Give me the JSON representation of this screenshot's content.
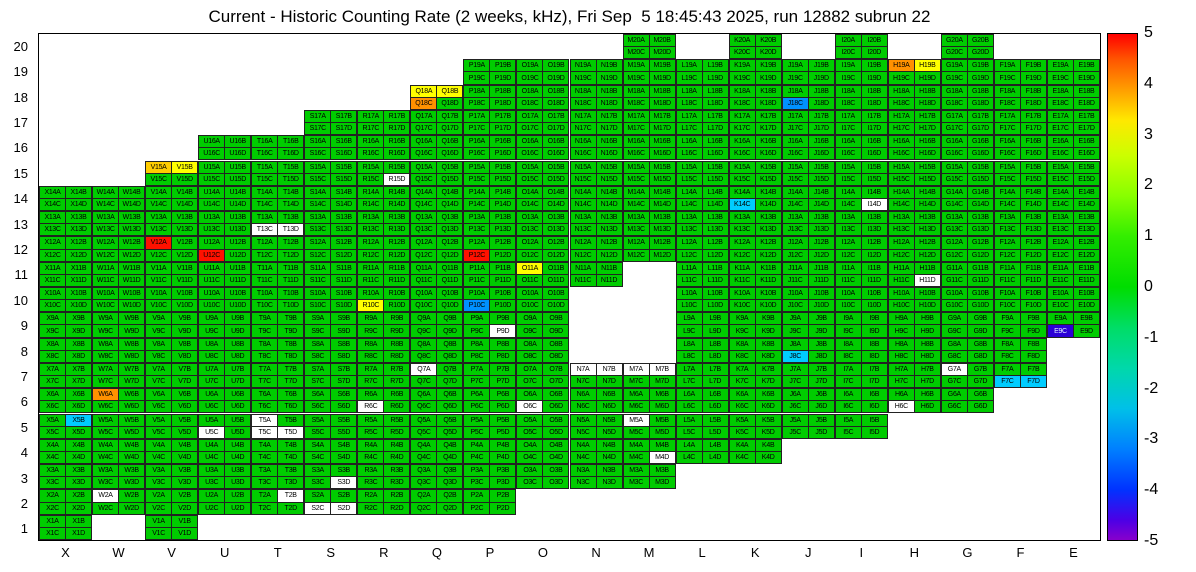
{
  "title": "Current - Historic Counting Rate (2 weeks, kHz), Fri Sep  5 18:45:43 2025, run 12882 subrun 22",
  "chart_data": {
    "type": "heatmap",
    "title": "Current - Historic Counting Rate (2 weeks, kHz), Fri Sep  5 18:45:43 2025, run 12882 subrun 22",
    "legend_position": "right",
    "columns": [
      "X",
      "W",
      "V",
      "U",
      "T",
      "S",
      "R",
      "Q",
      "P",
      "O",
      "N",
      "M",
      "L",
      "K",
      "J",
      "I",
      "H",
      "G",
      "F",
      "E"
    ],
    "rows": [
      20,
      19,
      18,
      17,
      16,
      15,
      14,
      13,
      12,
      11,
      10,
      9,
      8,
      7,
      6,
      5,
      4,
      3,
      2,
      1
    ],
    "quadrant_suffixes": [
      "A",
      "B",
      "C",
      "D"
    ],
    "cells": {
      "20": [
        "M",
        "K",
        "I",
        "G"
      ],
      "19": [
        "P",
        "O",
        "N",
        "M",
        "L",
        "K",
        "J",
        "I",
        "H",
        "G",
        "F",
        "E"
      ],
      "18": [
        "Q",
        "P",
        "O",
        "N",
        "M",
        "L",
        "K",
        "J",
        "I",
        "H",
        "G",
        "F",
        "E"
      ],
      "17": [
        "S",
        "R",
        "Q",
        "P",
        "O",
        "N",
        "M",
        "L",
        "K",
        "J",
        "I",
        "H",
        "G",
        "F",
        "E"
      ],
      "16": [
        "U",
        "T",
        "S",
        "R",
        "Q",
        "P",
        "O",
        "N",
        "M",
        "L",
        "K",
        "J",
        "I",
        "H",
        "G",
        "F",
        "E"
      ],
      "15": [
        "V",
        "U",
        "T",
        "S",
        "R",
        "Q",
        "P",
        "O",
        "N",
        "M",
        "L",
        "K",
        "J",
        "I",
        "H",
        "G",
        "F",
        "E"
      ],
      "14": [
        "X",
        "W",
        "V",
        "U",
        "T",
        "S",
        "R",
        "Q",
        "P",
        "O",
        "N",
        "M",
        "L",
        "K",
        "J",
        "I",
        "H",
        "G",
        "F",
        "E"
      ],
      "13": [
        "X",
        "W",
        "V",
        "U",
        "T",
        "S",
        "R",
        "Q",
        "P",
        "O",
        "N",
        "M",
        "L",
        "K",
        "J",
        "I",
        "H",
        "G",
        "F",
        "E"
      ],
      "12": [
        "X",
        "W",
        "V",
        "U",
        "T",
        "S",
        "R",
        "Q",
        "P",
        "O",
        "N",
        "M",
        "L",
        "K",
        "J",
        "I",
        "H",
        "G",
        "F",
        "E"
      ],
      "11": [
        "X",
        "W",
        "V",
        "U",
        "T",
        "S",
        "R",
        "Q",
        "P",
        "O",
        "N",
        "L",
        "K",
        "J",
        "I",
        "H",
        "G",
        "F",
        "E"
      ],
      "10": [
        "X",
        "W",
        "V",
        "U",
        "T",
        "S",
        "R",
        "Q",
        "P",
        "O",
        "L",
        "K",
        "J",
        "I",
        "H",
        "G",
        "F",
        "E"
      ],
      "9": [
        "X",
        "W",
        "V",
        "U",
        "T",
        "S",
        "R",
        "Q",
        "P",
        "O",
        "L",
        "K",
        "J",
        "I",
        "H",
        "G",
        "F",
        "E"
      ],
      "8": [
        "X",
        "W",
        "V",
        "U",
        "T",
        "S",
        "R",
        "Q",
        "P",
        "O",
        "L",
        "K",
        "J",
        "I",
        "H",
        "G",
        "F"
      ],
      "7": [
        "X",
        "W",
        "V",
        "U",
        "T",
        "S",
        "R",
        "Q",
        "P",
        "O",
        "N",
        "M",
        "L",
        "K",
        "J",
        "I",
        "H",
        "G",
        "F"
      ],
      "6": [
        "X",
        "W",
        "V",
        "U",
        "T",
        "S",
        "R",
        "Q",
        "P",
        "O",
        "N",
        "M",
        "L",
        "K",
        "J",
        "I",
        "H",
        "G"
      ],
      "5": [
        "X",
        "W",
        "V",
        "U",
        "T",
        "S",
        "R",
        "Q",
        "P",
        "O",
        "N",
        "M",
        "L",
        "K",
        "J",
        "I"
      ],
      "4": [
        "X",
        "W",
        "V",
        "U",
        "T",
        "S",
        "R",
        "Q",
        "P",
        "O",
        "N",
        "M",
        "L",
        "K"
      ],
      "3": [
        "X",
        "W",
        "V",
        "U",
        "T",
        "S",
        "R",
        "Q",
        "P",
        "O",
        "N",
        "M"
      ],
      "2": [
        "X",
        "W",
        "V",
        "U",
        "T",
        "S",
        "R",
        "Q",
        "P"
      ],
      "1": [
        "X",
        "V"
      ]
    },
    "palette": {
      "g": "#00cc00",
      "y": "#ffff00",
      "Y": "#ffcc00",
      "o": "#ff9100",
      "r": "#ff1100",
      "c": "#00ccff",
      "b": "#0091ff",
      "B": "#2b00d6",
      "w": "#ffffff"
    },
    "default_code": "g",
    "overrides": {
      "H19A": "o",
      "H19B": "y",
      "Q18A": "y",
      "Q18B": "y",
      "Q18C": "o",
      "J18C": "b",
      "V15A": "Y",
      "V15B": "y",
      "R15D": "w",
      "K14C": "c",
      "I14D": "w",
      "T13C": "w",
      "T13D": "w",
      "V12A": "r",
      "U12C": "r",
      "P12C": "r",
      "O11A": "y",
      "H11D": "w",
      "R10C": "y",
      "P10C": "b",
      "P9D": "w",
      "E9C": "B",
      "J8C": "c",
      "Q7A": "w",
      "N7A": "w",
      "N7B": "w",
      "M7A": "w",
      "M7B": "w",
      "G7A": "w",
      "F7C": "c",
      "F7D": "c",
      "W6A": "o",
      "R6C": "w",
      "O6C": "w",
      "H6C": "w",
      "X5B": "c",
      "U5C": "w",
      "T5A": "w",
      "T5C": "w",
      "T5D": "w",
      "M5A": "w",
      "M4D": "w",
      "S3D": "w",
      "W2A": "w",
      "T2B": "w",
      "S2C": "w",
      "S2D": "w"
    },
    "colorbar": {
      "min": -5,
      "max": 5,
      "ticks": [
        5,
        4,
        3,
        2,
        1,
        0,
        -1,
        -2,
        -3,
        -4,
        -5
      ],
      "stops": [
        {
          "pos": 0.0,
          "color": "#ff0000"
        },
        {
          "pos": 0.05,
          "color": "#ff5500"
        },
        {
          "pos": 0.11,
          "color": "#ff9e00"
        },
        {
          "pos": 0.17,
          "color": "#ffe800"
        },
        {
          "pos": 0.24,
          "color": "#ccff00"
        },
        {
          "pos": 0.32,
          "color": "#88ff00"
        },
        {
          "pos": 0.4,
          "color": "#33ee00"
        },
        {
          "pos": 0.5,
          "color": "#00dd00"
        },
        {
          "pos": 0.58,
          "color": "#00dd66"
        },
        {
          "pos": 0.66,
          "color": "#00d8aa"
        },
        {
          "pos": 0.74,
          "color": "#00c0e8"
        },
        {
          "pos": 0.82,
          "color": "#0080ff"
        },
        {
          "pos": 0.9,
          "color": "#0033ff"
        },
        {
          "pos": 0.96,
          "color": "#4b00e6"
        },
        {
          "pos": 1.0,
          "color": "#8800cc"
        }
      ]
    }
  }
}
